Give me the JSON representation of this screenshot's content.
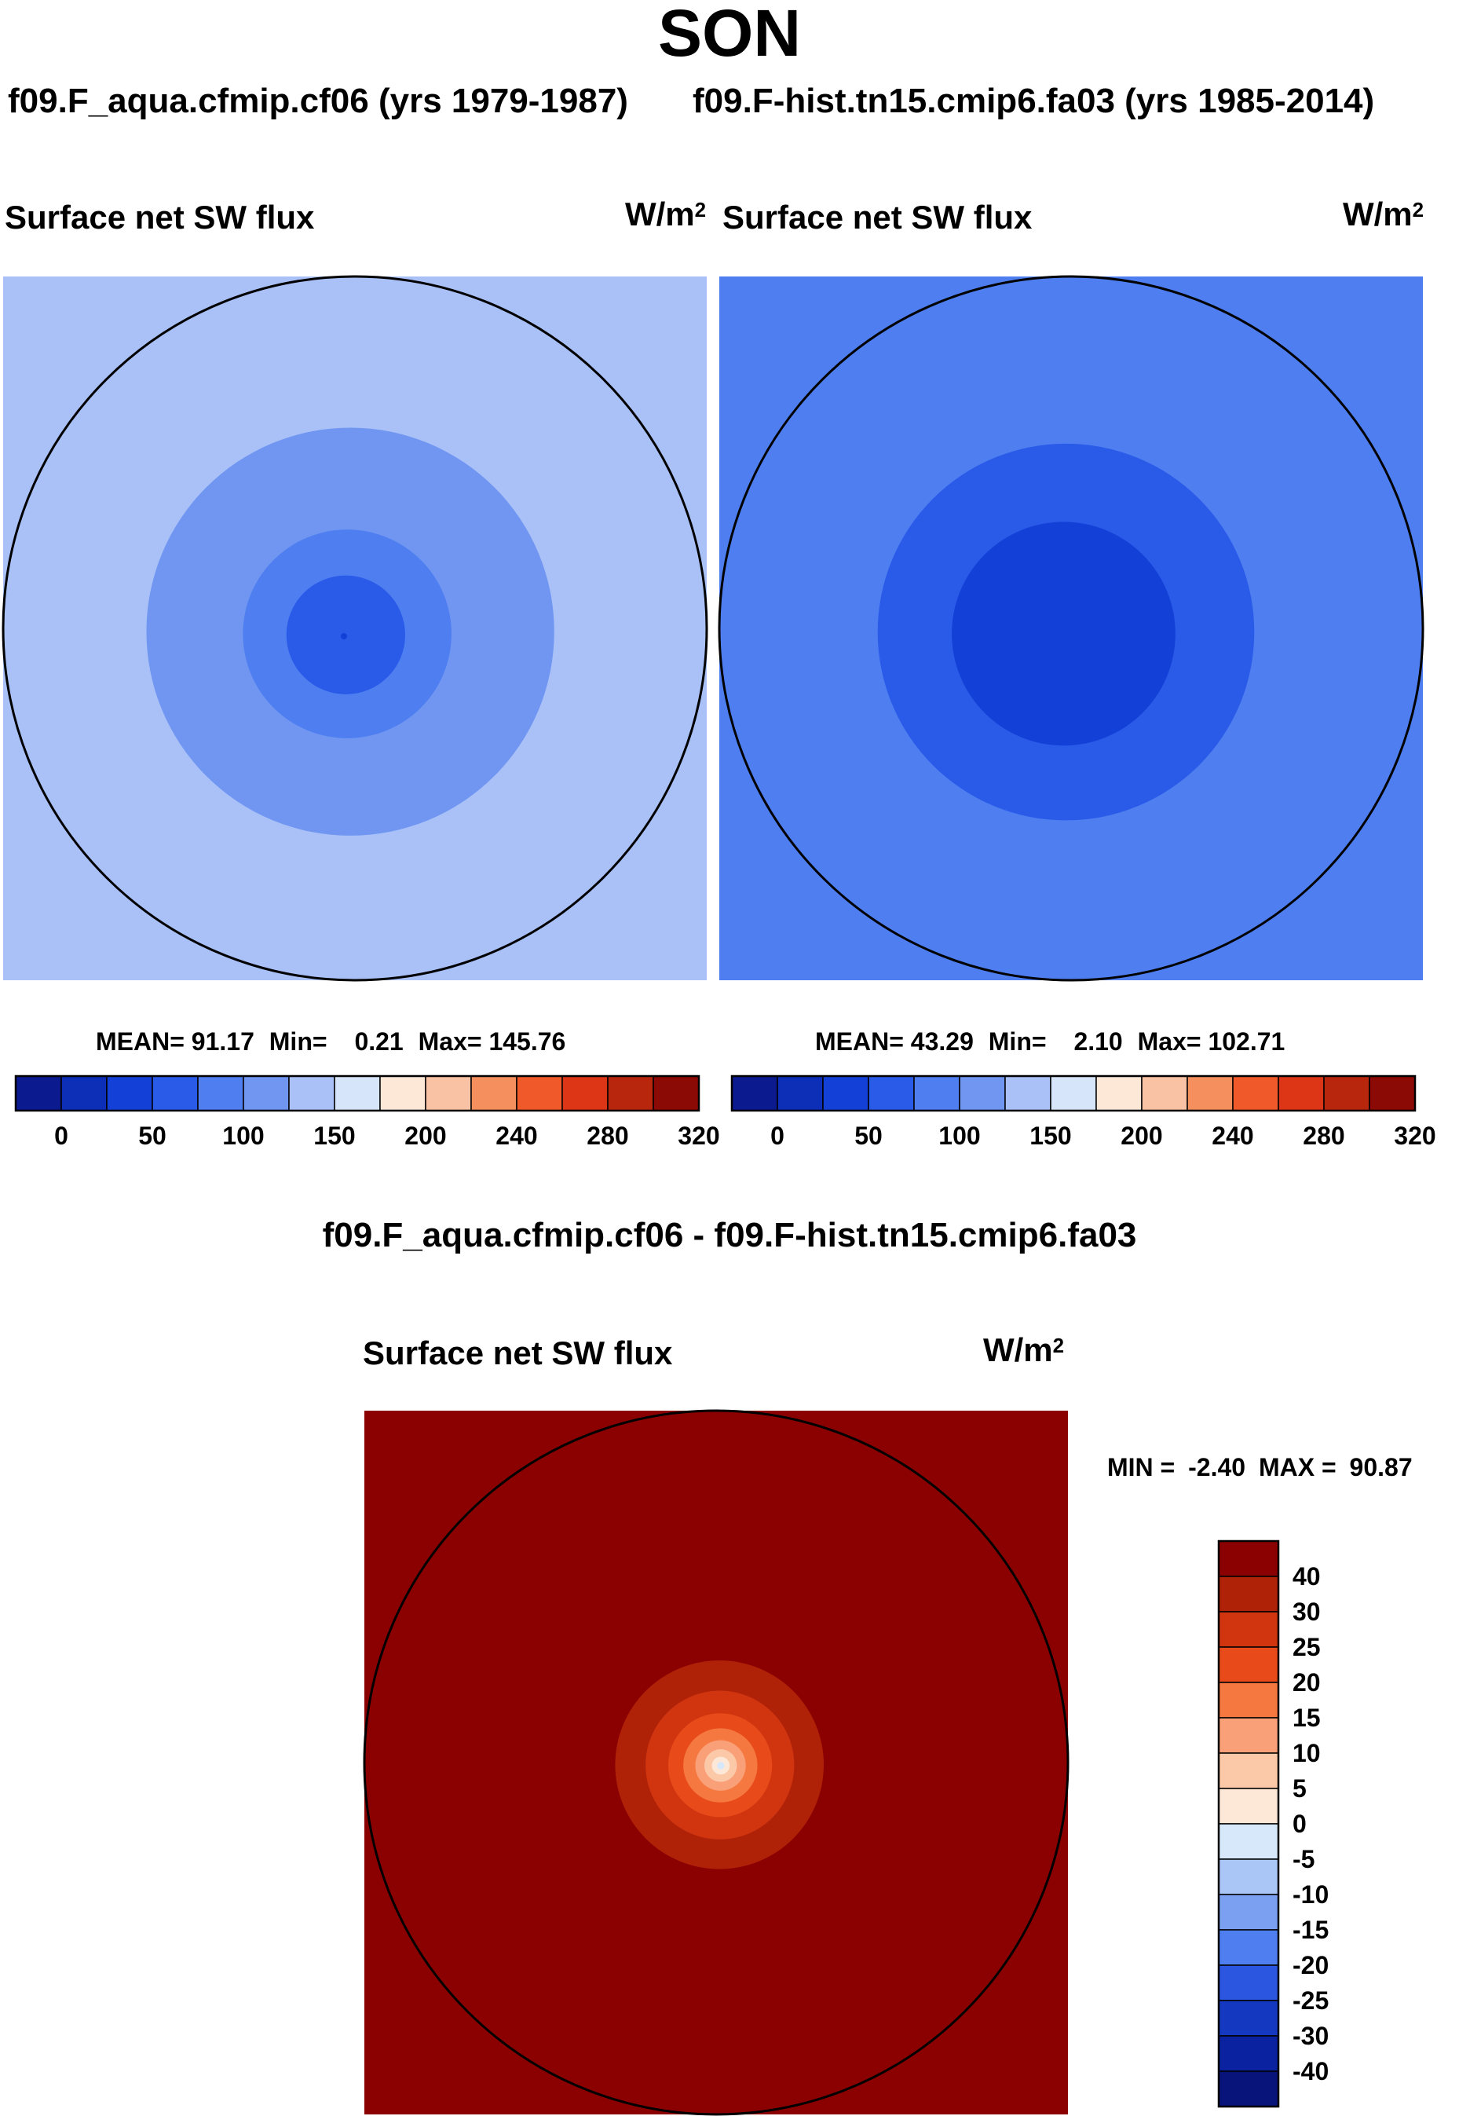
{
  "figure": {
    "season": "SON",
    "diff_title": "f09.F_aqua.cfmip.cf06 - f09.F-hist.tn15.cmip6.fa03"
  },
  "chart_data": [
    {
      "type": "heatmap",
      "projection": "north polar stereographic",
      "title": "f09.F_aqua.cfmip.cf06 (yrs 1979-1987)",
      "variable": "Surface net SW flux",
      "units_base": "W/m",
      "units_exp": "2",
      "stats": {
        "mean_label": "MEAN=",
        "mean": "91.17",
        "min_label": "Min=",
        "min": "0.21",
        "max_label": "Max=",
        "max": "145.76"
      },
      "colorbar": {
        "orientation": "horizontal",
        "levels": [
          0,
          25,
          50,
          75,
          100,
          125,
          150,
          175,
          200,
          220,
          240,
          260,
          280,
          300,
          320
        ],
        "tick_labels": [
          "0",
          "50",
          "100",
          "150",
          "200",
          "240",
          "280",
          "320"
        ],
        "colors": [
          "#0b1b8f",
          "#0d2fb8",
          "#1340d6",
          "#2a5ae8",
          "#4e7ef0",
          "#7096f2",
          "#a9c1f7",
          "#d6e5fa",
          "#fde8d8",
          "#f9c2a4",
          "#f5905e",
          "#f05a2b",
          "#dd3617",
          "#b8260e",
          "#8b0a06"
        ]
      },
      "field_rings": [
        {
          "lat": 55,
          "value": 140
        },
        {
          "lat": 63,
          "value": 120
        },
        {
          "lat": 70,
          "value": 105
        },
        {
          "lat": 76,
          "value": 85
        },
        {
          "lat": 82,
          "value": 60
        },
        {
          "lat": 90,
          "value": 25
        }
      ]
    },
    {
      "type": "heatmap",
      "projection": "north polar stereographic",
      "title": "f09.F-hist.tn15.cmip6.fa03 (yrs 1985-2014)",
      "variable": "Surface net SW flux",
      "units_base": "W/m",
      "units_exp": "2",
      "stats": {
        "mean_label": "MEAN=",
        "mean": "43.29",
        "min_label": "Min=",
        "min": "2.10",
        "max_label": "Max=",
        "max": "102.71"
      },
      "colorbar": {
        "orientation": "horizontal",
        "levels": [
          0,
          25,
          50,
          75,
          100,
          125,
          150,
          175,
          200,
          220,
          240,
          260,
          280,
          300,
          320
        ],
        "tick_labels": [
          "0",
          "50",
          "100",
          "150",
          "200",
          "240",
          "280",
          "320"
        ],
        "colors": [
          "#0b1b8f",
          "#0d2fb8",
          "#1340d6",
          "#2a5ae8",
          "#4e7ef0",
          "#7096f2",
          "#a9c1f7",
          "#d6e5fa",
          "#fde8d8",
          "#f9c2a4",
          "#f5905e",
          "#f05a2b",
          "#dd3617",
          "#b8260e",
          "#8b0a06"
        ]
      },
      "field_rings": [
        {
          "lat": 55,
          "value": 80
        },
        {
          "lat": 65,
          "value": 65
        },
        {
          "lat": 75,
          "value": 45
        },
        {
          "lat": 90,
          "value": 30
        }
      ]
    },
    {
      "type": "heatmap",
      "projection": "north polar stereographic",
      "title": "f09.F_aqua.cfmip.cf06 - f09.F-hist.tn15.cmip6.fa03",
      "variable": "Surface net SW flux",
      "units_base": "W/m",
      "units_exp": "2",
      "stats": {
        "min_label": "MIN =",
        "min": "-2.40",
        "max_label": "MAX =",
        "max": "90.87"
      },
      "colorbar": {
        "orientation": "vertical",
        "tick_labels": [
          "40",
          "30",
          "25",
          "20",
          "15",
          "10",
          "5",
          "0",
          "-5",
          "-10",
          "-15",
          "-20",
          "-25",
          "-30",
          "-40"
        ],
        "colors": [
          "#8b0000",
          "#b02208",
          "#d03510",
          "#e84a1a",
          "#f57840",
          "#f9a078",
          "#fbc8a8",
          "#fde8d8",
          "#d6e8fa",
          "#a9c6f7",
          "#7ba0f2",
          "#4e7ef0",
          "#2a56e0",
          "#1438c0",
          "#0b22a0",
          "#08147a"
        ]
      },
      "field_rings": [
        {
          "lat": 70,
          "value": 50
        },
        {
          "lat": 76,
          "value": 32
        },
        {
          "lat": 80,
          "value": 27
        },
        {
          "lat": 83,
          "value": 22
        },
        {
          "lat": 85,
          "value": 17
        },
        {
          "lat": 86.6,
          "value": 12
        },
        {
          "lat": 87.8,
          "value": 7
        },
        {
          "lat": 88.8,
          "value": 2
        },
        {
          "lat": 89.5,
          "value": -2
        }
      ]
    }
  ]
}
